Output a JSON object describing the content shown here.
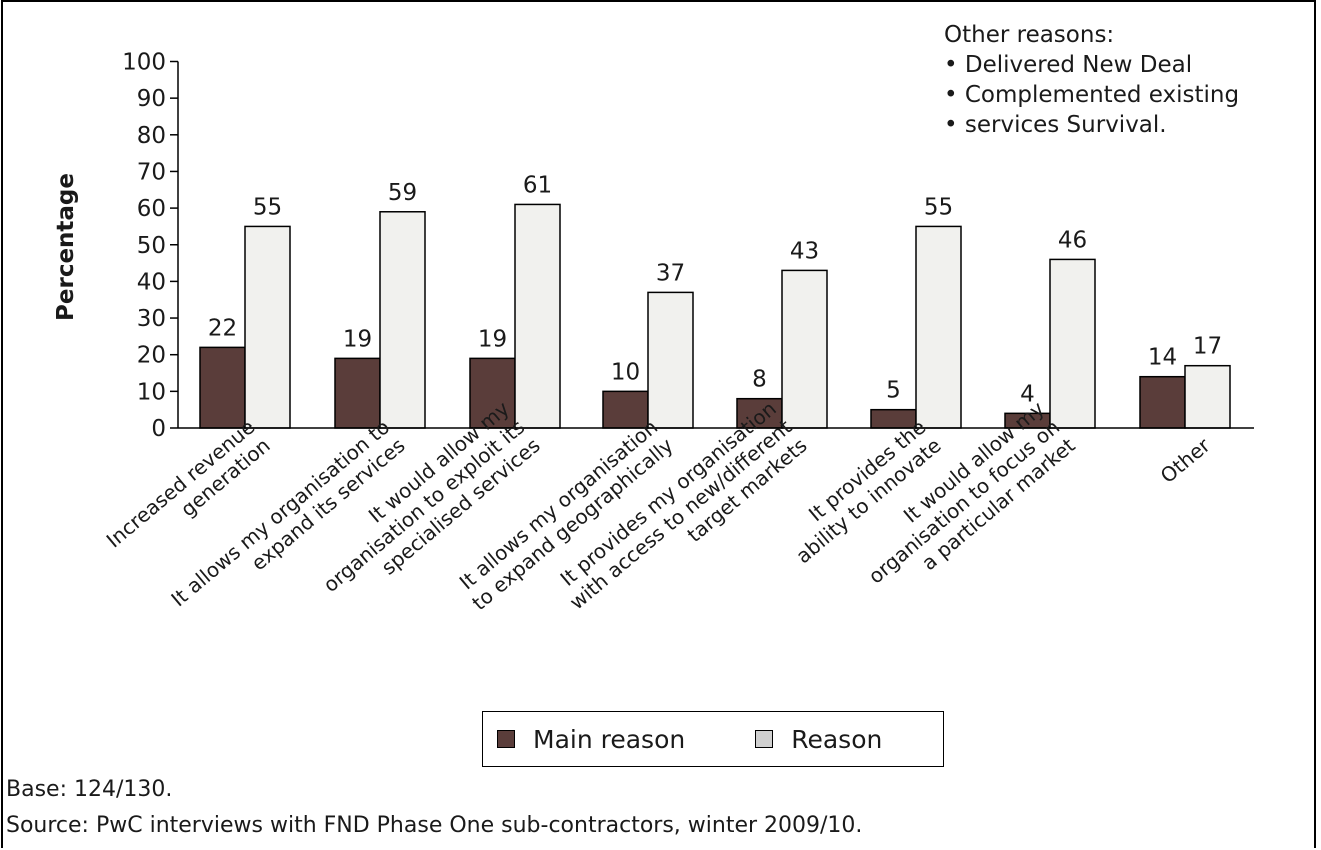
{
  "chart_data": {
    "type": "bar",
    "ylabel": "Percentage",
    "ylim": [
      0,
      100
    ],
    "yticks": [
      0,
      10,
      20,
      30,
      40,
      50,
      60,
      70,
      80,
      90,
      100
    ],
    "grid": false,
    "categories": [
      [
        "Increased revenue",
        "generation"
      ],
      [
        "It allows my organisation to",
        "expand its services"
      ],
      [
        "It would allow my",
        "organisation to exploit its",
        "specialised services"
      ],
      [
        "It allows my organisation",
        "to expand geographically"
      ],
      [
        "It provides my organisation",
        "with access to new/different",
        "target markets"
      ],
      [
        "It provides the",
        "ability to innovate"
      ],
      [
        "It would allow my",
        "organisation to focus on",
        "a particular market"
      ],
      [
        "Other"
      ]
    ],
    "series": [
      {
        "name": "Main reason",
        "color": "#5a3d3a",
        "values": [
          22,
          19,
          19,
          10,
          8,
          5,
          4,
          14
        ]
      },
      {
        "name": "Reason",
        "color": "#f1f1ee",
        "values": [
          55,
          59,
          61,
          37,
          43,
          55,
          46,
          17
        ]
      }
    ],
    "legend_position": "bottom-center",
    "annotation": {
      "heading": "Other reasons:",
      "items": [
        "• Delivered New Deal",
        "• Complemented existing",
        "• services Survival."
      ]
    }
  },
  "footnotes": {
    "base": "Base: 124/130.",
    "source": "Source: PwC interviews with FND Phase One sub-contractors, winter 2009/10."
  },
  "legend_swatch_colors": {
    "main": "#5a3d3a",
    "reason": "#d0d0d0"
  }
}
